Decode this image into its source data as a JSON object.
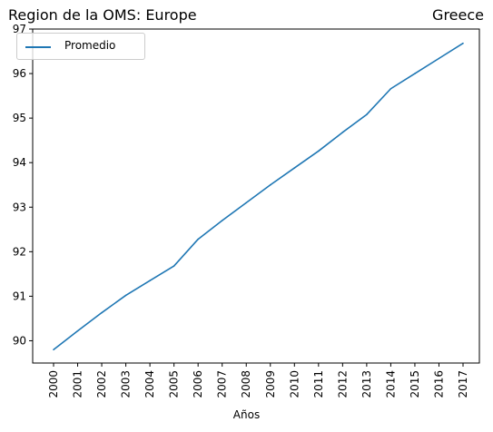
{
  "chart_data": {
    "type": "line",
    "title_left": "Region de la OMS: Europe",
    "title_right": "Greece",
    "xlabel": "Años",
    "ylabel": "",
    "x": [
      "2000",
      "2001",
      "2002",
      "2003",
      "2004",
      "2005",
      "2006",
      "2007",
      "2008",
      "2009",
      "2010",
      "2011",
      "2012",
      "2013",
      "2014",
      "2015",
      "2016",
      "2017"
    ],
    "ylim": [
      89.5,
      97.0
    ],
    "yticks": [
      90,
      91,
      92,
      93,
      94,
      95,
      96,
      97
    ],
    "series": [
      {
        "name": "Promedio",
        "color": "#1f77b4",
        "values": [
          89.8,
          90.22,
          90.63,
          91.02,
          91.35,
          91.68,
          92.28,
          92.7,
          93.1,
          93.5,
          93.88,
          94.26,
          94.68,
          95.08,
          95.66,
          96.0,
          96.34,
          96.68
        ]
      }
    ],
    "legend_position": "upper left",
    "grid": false
  }
}
